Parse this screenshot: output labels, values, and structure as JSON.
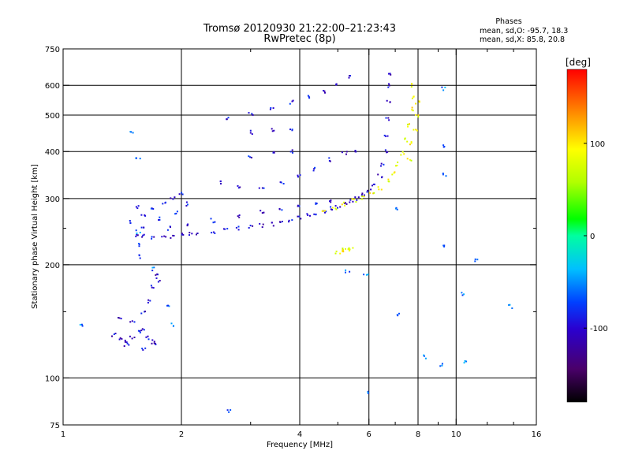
{
  "chart_data": {
    "type": "scatter",
    "title_line1": "Tromsø 20120930 21:22:00–21:23:43",
    "title_line2": "RwPretec (8p)",
    "info": {
      "heading": "Phases",
      "line1": "mean, sd,O: -95.7, 18.3",
      "line2": "mean, sd,X:  85.8, 20.8"
    },
    "xlabel": "Frequency [MHz]",
    "ylabel": "Stationary phase Virtual Height [km]",
    "x_scale": "log",
    "y_scale": "log",
    "xlim": [
      1,
      16
    ],
    "ylim": [
      75,
      750
    ],
    "x_ticks": [
      {
        "value": 1,
        "label": "1"
      },
      {
        "value": 2,
        "label": "2"
      },
      {
        "value": 4,
        "label": "4"
      },
      {
        "value": 6,
        "label": "6"
      },
      {
        "value": 8,
        "label": "8"
      },
      {
        "value": 10,
        "label": "10"
      },
      {
        "value": 16,
        "label": "16"
      }
    ],
    "x_minor_ticks": [
      3,
      5,
      7,
      9,
      12,
      14
    ],
    "x_grid": [
      2,
      4,
      6,
      8,
      10
    ],
    "y_ticks": [
      {
        "value": 75,
        "label": "75"
      },
      {
        "value": 100,
        "label": "100"
      },
      {
        "value": 200,
        "label": "200"
      },
      {
        "value": 300,
        "label": "300"
      },
      {
        "value": 400,
        "label": "400"
      },
      {
        "value": 500,
        "label": "500"
      },
      {
        "value": 600,
        "label": "600"
      },
      {
        "value": 750,
        "label": "750"
      }
    ],
    "y_grid": [
      100,
      200,
      300,
      400,
      500,
      600
    ],
    "grid": true,
    "colorbar": {
      "label": "[deg]",
      "range": [
        -180,
        180
      ],
      "ticks": [
        {
          "value": 100,
          "label": "100"
        },
        {
          "value": 0,
          "label": "0"
        },
        {
          "value": -100,
          "label": "-100"
        }
      ]
    },
    "series": [
      {
        "trace": "O-mode F-layer lower trace",
        "phase": -100,
        "points": [
          [
            1.55,
            240
          ],
          [
            1.6,
            238
          ],
          [
            1.7,
            237
          ],
          [
            1.8,
            237
          ],
          [
            1.9,
            238
          ],
          [
            2.0,
            240
          ],
          [
            2.1,
            241
          ],
          [
            2.2,
            242
          ],
          [
            2.4,
            245
          ],
          [
            2.6,
            248
          ],
          [
            2.8,
            250
          ],
          [
            3.0,
            252
          ],
          [
            3.2,
            254
          ],
          [
            3.4,
            256
          ],
          [
            3.6,
            258
          ],
          [
            3.8,
            262
          ],
          [
            4.0,
            266
          ],
          [
            4.2,
            270
          ],
          [
            4.4,
            275
          ],
          [
            4.6,
            278
          ],
          [
            4.8,
            282
          ],
          [
            5.0,
            286
          ],
          [
            5.2,
            290
          ],
          [
            5.4,
            295
          ],
          [
            5.6,
            300
          ],
          [
            5.8,
            306
          ],
          [
            6.0,
            314
          ],
          [
            6.2,
            325
          ],
          [
            6.4,
            345
          ],
          [
            6.5,
            370
          ],
          [
            6.6,
            400
          ],
          [
            6.65,
            440
          ],
          [
            6.7,
            490
          ],
          [
            6.72,
            540
          ],
          [
            6.75,
            600
          ],
          [
            6.78,
            640
          ]
        ]
      },
      {
        "trace": "O-mode multi-hop traces",
        "phase": -95,
        "points": [
          [
            2.1,
            255
          ],
          [
            2.4,
            262
          ],
          [
            2.8,
            270
          ],
          [
            3.2,
            276
          ],
          [
            3.6,
            280
          ],
          [
            4.0,
            285
          ],
          [
            4.4,
            290
          ],
          [
            4.8,
            296
          ],
          [
            2.5,
            330
          ],
          [
            2.8,
            320
          ],
          [
            3.2,
            322
          ],
          [
            3.6,
            330
          ],
          [
            4.0,
            345
          ],
          [
            4.4,
            360
          ],
          [
            4.8,
            380
          ],
          [
            5.2,
            395
          ],
          [
            5.6,
            400
          ],
          [
            2.6,
            490
          ],
          [
            3.0,
            505
          ],
          [
            3.4,
            520
          ],
          [
            3.8,
            540
          ],
          [
            4.2,
            560
          ],
          [
            4.6,
            580
          ],
          [
            5.0,
            600
          ],
          [
            5.4,
            630
          ],
          [
            3.0,
            450
          ],
          [
            3.4,
            455
          ],
          [
            3.8,
            460
          ],
          [
            3.0,
            390
          ],
          [
            3.4,
            395
          ],
          [
            3.8,
            400
          ]
        ]
      },
      {
        "trace": "O-mode spread near critical frequency",
        "phase": -90,
        "points": [
          [
            1.5,
            260
          ],
          [
            1.6,
            270
          ],
          [
            1.7,
            280
          ],
          [
            1.8,
            290
          ],
          [
            1.9,
            300
          ],
          [
            2.0,
            310
          ],
          [
            2.05,
            290
          ],
          [
            1.6,
            250
          ],
          [
            1.75,
            265
          ],
          [
            1.95,
            275
          ],
          [
            1.55,
            285
          ],
          [
            1.85,
            250
          ]
        ]
      },
      {
        "trace": "E-layer echoes",
        "phase": -100,
        "points": [
          [
            1.35,
            130
          ],
          [
            1.4,
            127
          ],
          [
            1.45,
            125
          ],
          [
            1.5,
            128
          ],
          [
            1.55,
            132
          ],
          [
            1.6,
            135
          ],
          [
            1.65,
            128
          ],
          [
            1.7,
            125
          ],
          [
            1.4,
            145
          ],
          [
            1.6,
            150
          ],
          [
            1.65,
            160
          ],
          [
            1.7,
            175
          ],
          [
            1.72,
            190
          ],
          [
            1.75,
            182
          ],
          [
            1.5,
            140
          ],
          [
            1.45,
            122
          ],
          [
            1.6,
            120
          ],
          [
            1.7,
            122
          ]
        ]
      },
      {
        "trace": "X-mode trace",
        "phase": 90,
        "points": [
          [
            4.6,
            280
          ],
          [
            4.9,
            284
          ],
          [
            5.2,
            290
          ],
          [
            5.5,
            296
          ],
          [
            5.8,
            302
          ],
          [
            6.1,
            310
          ],
          [
            6.4,
            320
          ],
          [
            6.7,
            335
          ],
          [
            6.9,
            350
          ],
          [
            7.1,
            370
          ],
          [
            7.3,
            395
          ],
          [
            7.5,
            430
          ],
          [
            7.6,
            470
          ],
          [
            7.7,
            520
          ],
          [
            7.75,
            560
          ],
          [
            7.8,
            600
          ],
          [
            7.6,
            380
          ],
          [
            7.7,
            420
          ],
          [
            7.9,
            460
          ],
          [
            7.95,
            500
          ],
          [
            8.0,
            540
          ],
          [
            5.0,
            215
          ],
          [
            5.1,
            218
          ],
          [
            5.2,
            220
          ],
          [
            5.3,
            222
          ],
          [
            5.4,
            220
          ]
        ]
      },
      {
        "trace": "Scattered echoes",
        "phase": -60,
        "points": [
          [
            1.12,
            137
          ],
          [
            1.5,
            450
          ],
          [
            1.55,
            380
          ],
          [
            1.55,
            245
          ],
          [
            1.55,
            225
          ],
          [
            1.55,
            210
          ],
          [
            1.7,
            195
          ],
          [
            1.85,
            155
          ],
          [
            1.9,
            138
          ],
          [
            2.65,
            82
          ],
          [
            5.3,
            193
          ],
          [
            5.9,
            188
          ],
          [
            6.0,
            91
          ],
          [
            7.1,
            282
          ],
          [
            7.1,
            147
          ],
          [
            8.3,
            114
          ],
          [
            9.2,
            108
          ],
          [
            9.3,
            588
          ],
          [
            9.3,
            412
          ],
          [
            9.3,
            348
          ],
          [
            9.3,
            225
          ],
          [
            10.6,
            110
          ],
          [
            10.4,
            168
          ],
          [
            11.3,
            205
          ],
          [
            13.8,
            155
          ]
        ]
      }
    ]
  }
}
